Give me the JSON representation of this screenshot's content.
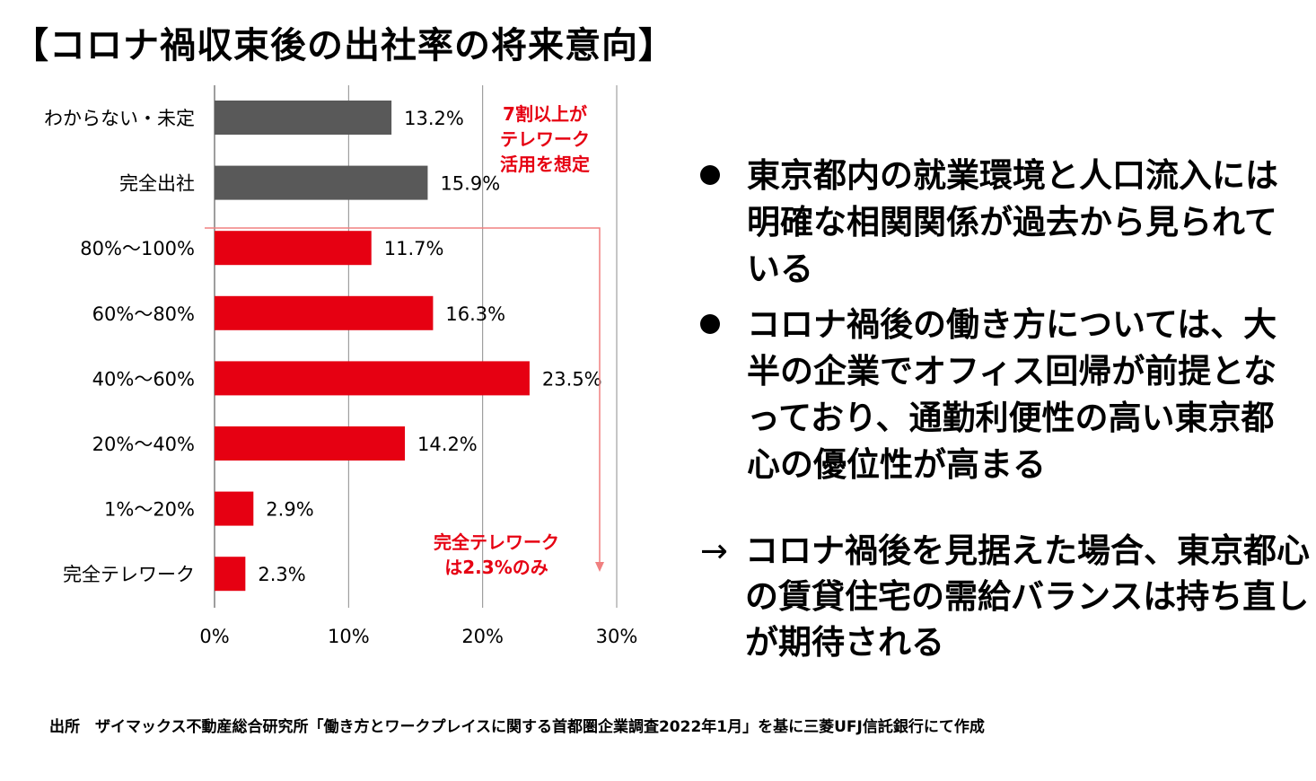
{
  "title": "【コロナ禍収束後の出社率の将来意向】",
  "chart_data": {
    "type": "bar",
    "orientation": "horizontal",
    "categories": [
      "わからない・未定",
      "完全出社",
      "80%～100%",
      "60%～80%",
      "40%～60%",
      "20%～40%",
      "1%～20%",
      "完全テレワーク"
    ],
    "values": [
      13.2,
      15.9,
      11.7,
      16.3,
      23.5,
      14.2,
      2.9,
      2.3
    ],
    "value_labels": [
      "13.2%",
      "15.9%",
      "11.7%",
      "16.3%",
      "23.5%",
      "14.2%",
      "2.9%",
      "2.3%"
    ],
    "bar_colors": [
      "#595959",
      "#595959",
      "#e60012",
      "#e60012",
      "#e60012",
      "#e60012",
      "#e60012",
      "#e60012"
    ],
    "xlim": [
      0,
      30
    ],
    "xticks": [
      0,
      10,
      20,
      30
    ],
    "xtick_labels": [
      "0%",
      "10%",
      "20%",
      "30%"
    ],
    "grid": true,
    "annotations": {
      "telework_majority": [
        "7割以上が",
        "テレワーク",
        "活用を想定"
      ],
      "full_telework": [
        "完全テレワーク",
        "は2.3%のみ"
      ],
      "color": "#e60012",
      "bracket_color": "#f08080"
    }
  },
  "bullets": [
    {
      "text": "東京都内の就業環境と人口流入には明確な相関関係が過去から見られている"
    },
    {
      "text": "コロナ禍後の働き方については、大半の企業でオフィス回帰が前提となっており、通勤利便性の高い東京都心の優位性が高まる"
    }
  ],
  "conclusion": {
    "arrow": "→",
    "text": "コロナ禍後を見据えた場合、東京都心の賃貸住宅の需給バランスは持ち直しが期待される"
  },
  "source": "出所　ザイマックス不動産総合研究所「働き方とワークプレイスに関する首都圏企業調査2022年1月」を基に三菱UFJ信託銀行にて作成"
}
